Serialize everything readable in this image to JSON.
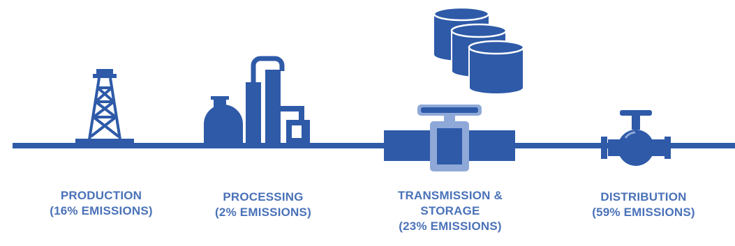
{
  "colors": {
    "primary": "#2e5aa8",
    "light": "#8ea8d8",
    "label": "#4a72b8"
  },
  "stages": [
    {
      "id": "production",
      "icon": "oil-derrick-icon",
      "lines": [
        "PRODUCTION",
        "(16% EMISSIONS)"
      ]
    },
    {
      "id": "processing",
      "icon": "processing-plant-icon",
      "lines": [
        "PROCESSING",
        "(2% EMISSIONS)"
      ]
    },
    {
      "id": "transmission",
      "icon": "pipeline-meter-icon",
      "lines": [
        "TRANSMISSION &",
        "STORAGE",
        "(23% EMISSIONS)"
      ]
    },
    {
      "id": "distribution",
      "icon": "gate-valve-icon",
      "lines": [
        "DISTRIBUTION",
        "(59% EMISSIONS)"
      ]
    }
  ],
  "storage_icon": "storage-tanks-icon"
}
